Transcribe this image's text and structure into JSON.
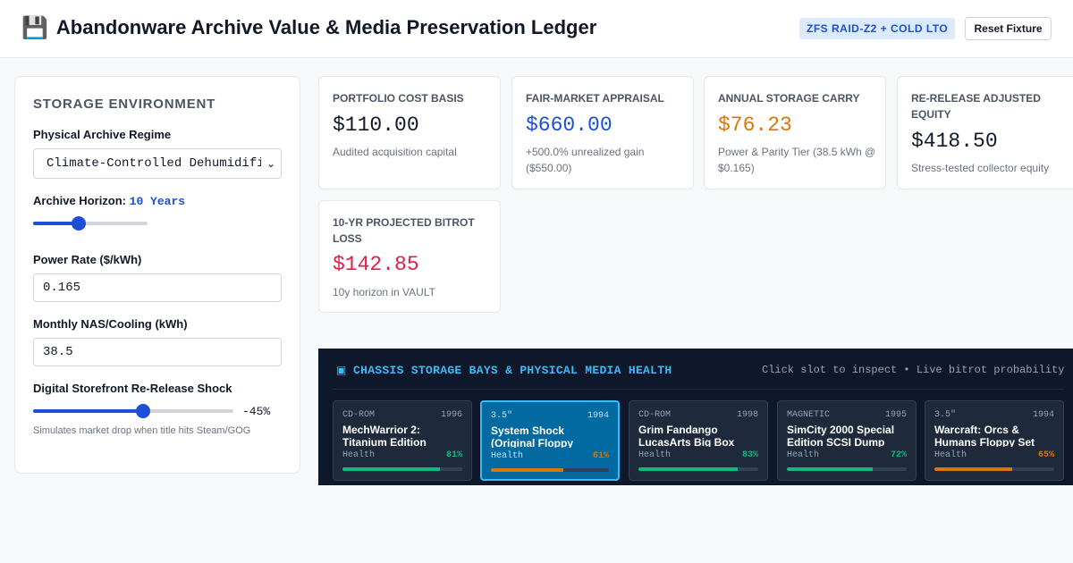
{
  "header": {
    "icon": "floppy-disk-icon",
    "icon_glyph": "💾",
    "title": "Abandonware Archive Value & Media Preservation Ledger",
    "badge": "ZFS RAID-Z2 + COLD LTO",
    "reset_label": "Reset Fixture"
  },
  "sidebar": {
    "heading": "STORAGE ENVIRONMENT",
    "regime_label": "Physical Archive Regime",
    "regime_value": "Climate-Controlled Dehumidified Vault",
    "horizon_label": "Archive Horizon:",
    "horizon_value": "10 Years",
    "horizon_slider_fraction": 0.4,
    "power_label": "Power Rate ($/kWh)",
    "power_value": "0.165",
    "nas_label": "Monthly NAS/Cooling (kWh)",
    "nas_value": "38.5",
    "shock_label": "Digital Storefront Re-Release Shock",
    "shock_value": "-45%",
    "shock_slider_fraction": 0.55,
    "shock_hint": "Simulates market drop when title hits Steam/GOG"
  },
  "metrics": [
    {
      "label": "PORTFOLIO COST BASIS",
      "value": "$110.00",
      "detail": "Audited acquisition capital",
      "color": "#111827"
    },
    {
      "label": "FAIR-MARKET APPRAISAL",
      "value": "$660.00",
      "detail": "+500.0% unrealized gain ($550.00)",
      "color": "#1d4ed8"
    },
    {
      "label": "ANNUAL STORAGE CARRY",
      "value": "$76.23",
      "detail": "Power & Parity Tier (38.5 kWh @ $0.165)",
      "color": "#d97706"
    },
    {
      "label": "RE-RELEASE ADJUSTED EQUITY",
      "value": "$418.50",
      "detail": "Stress-tested collector equity",
      "color": "#111827"
    },
    {
      "label": "10-YR PROJECTED BITROT LOSS",
      "value": "$142.85",
      "detail": "10y horizon in VAULT",
      "color": "#e11d48"
    }
  ],
  "chassis": {
    "chip_icon": "chip-icon",
    "title": "CHASSIS STORAGE BAYS & PHYSICAL MEDIA HEALTH",
    "hint": "Click slot to inspect • Live bitrot probability",
    "health_label": "Health",
    "slots": [
      {
        "media": "CD-ROM",
        "year": "1996",
        "name": "MechWarrior 2: Titanium Edition",
        "health": "81%",
        "health_value": 0.81,
        "color": "#10b981",
        "selected": false
      },
      {
        "media": "3.5\"",
        "year": "1994",
        "name": "System Shock (Original Floppy Release)",
        "health": "61%",
        "health_value": 0.61,
        "color": "#d97706",
        "selected": true
      },
      {
        "media": "CD-ROM",
        "year": "1998",
        "name": "Grim Fandango LucasArts Big Box",
        "health": "83%",
        "health_value": 0.83,
        "color": "#10b981",
        "selected": false
      },
      {
        "media": "MAGNETIC",
        "year": "1995",
        "name": "SimCity 2000 Special Edition SCSI Dump",
        "health": "72%",
        "health_value": 0.72,
        "color": "#10b981",
        "selected": false
      },
      {
        "media": "3.5\"",
        "year": "1994",
        "name": "Warcraft: Orcs & Humans Floppy Set",
        "health": "65%",
        "health_value": 0.65,
        "color": "#d97706",
        "selected": false
      }
    ]
  }
}
